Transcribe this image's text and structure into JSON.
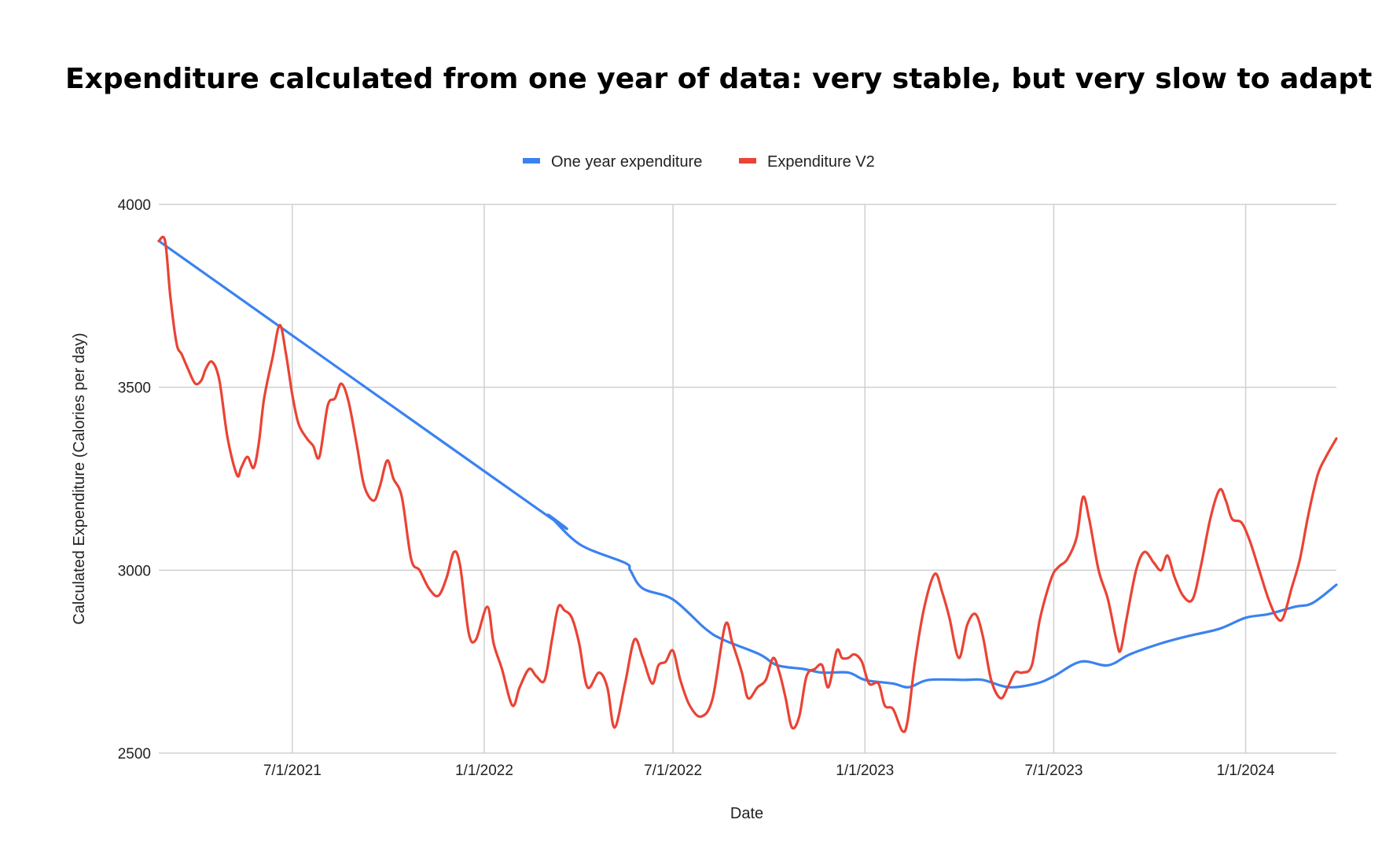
{
  "chart_data": {
    "type": "line",
    "title": "Expenditure calculated from one year of data: very stable, but very slow to adapt",
    "xlabel": "Date",
    "ylabel": "Calculated Expenditure (Calories per day)",
    "ylim": [
      2500,
      4000
    ],
    "xlim": [
      "2021-02-23",
      "2024-03-28"
    ],
    "yticks": [
      "2500",
      "3000",
      "3500",
      "4000"
    ],
    "yticks_values": [
      2500,
      3000,
      3500,
      4000
    ],
    "xticks": [
      "7/1/2021",
      "1/1/2022",
      "7/1/2022",
      "1/1/2023",
      "7/1/2023",
      "1/1/2024"
    ],
    "xticks_values": [
      "2021-07-01",
      "2022-01-01",
      "2022-07-01",
      "2023-01-01",
      "2023-07-01",
      "2024-01-01"
    ],
    "grid": true,
    "legend_position": "top",
    "series": [
      {
        "name": "One year expenditure",
        "color": "#3b82f0",
        "points": [
          [
            "2021-02-23",
            3900
          ],
          [
            "2022-02-20",
            3170
          ],
          [
            "2022-03-04",
            3150
          ],
          [
            "2022-04-03",
            3070
          ],
          [
            "2022-05-16",
            3020
          ],
          [
            "2022-05-21",
            3000
          ],
          [
            "2022-06-02",
            2950
          ],
          [
            "2022-07-01",
            2920
          ],
          [
            "2022-08-01",
            2840
          ],
          [
            "2022-08-18",
            2810
          ],
          [
            "2022-09-22",
            2770
          ],
          [
            "2022-10-09",
            2740
          ],
          [
            "2022-11-03",
            2730
          ],
          [
            "2022-11-21",
            2720
          ],
          [
            "2022-12-16",
            2720
          ],
          [
            "2023-01-01",
            2700
          ],
          [
            "2023-01-28",
            2690
          ],
          [
            "2023-02-12",
            2680
          ],
          [
            "2023-03-03",
            2700
          ],
          [
            "2023-04-07",
            2700
          ],
          [
            "2023-04-24",
            2700
          ],
          [
            "2023-05-19",
            2680
          ],
          [
            "2023-06-14",
            2690
          ],
          [
            "2023-07-01",
            2710
          ],
          [
            "2023-07-27",
            2750
          ],
          [
            "2023-08-22",
            2740
          ],
          [
            "2023-09-12",
            2770
          ],
          [
            "2023-10-12",
            2800
          ],
          [
            "2023-11-07",
            2820
          ],
          [
            "2023-12-07",
            2840
          ],
          [
            "2024-01-01",
            2870
          ],
          [
            "2024-01-23",
            2880
          ],
          [
            "2024-02-17",
            2900
          ],
          [
            "2024-03-05",
            2910
          ],
          [
            "2024-03-28",
            2960
          ]
        ]
      },
      {
        "name": "Expenditure V2",
        "color": "#ea4335",
        "points": [
          [
            "2021-02-23",
            3900
          ],
          [
            "2021-03-01",
            3900
          ],
          [
            "2021-03-06",
            3750
          ],
          [
            "2021-03-12",
            3620
          ],
          [
            "2021-03-17",
            3590
          ],
          [
            "2021-03-23",
            3550
          ],
          [
            "2021-03-30",
            3510
          ],
          [
            "2021-04-05",
            3520
          ],
          [
            "2021-04-09",
            3550
          ],
          [
            "2021-04-15",
            3570
          ],
          [
            "2021-04-22",
            3520
          ],
          [
            "2021-04-30",
            3360
          ],
          [
            "2021-05-09",
            3260
          ],
          [
            "2021-05-13",
            3280
          ],
          [
            "2021-05-19",
            3310
          ],
          [
            "2021-05-25",
            3280
          ],
          [
            "2021-05-30",
            3350
          ],
          [
            "2021-06-04",
            3470
          ],
          [
            "2021-06-12",
            3580
          ],
          [
            "2021-06-19",
            3670
          ],
          [
            "2021-06-25",
            3590
          ],
          [
            "2021-07-01",
            3480
          ],
          [
            "2021-07-07",
            3400
          ],
          [
            "2021-07-15",
            3360
          ],
          [
            "2021-07-21",
            3340
          ],
          [
            "2021-07-27",
            3310
          ],
          [
            "2021-08-04",
            3450
          ],
          [
            "2021-08-11",
            3470
          ],
          [
            "2021-08-17",
            3510
          ],
          [
            "2021-08-24",
            3460
          ],
          [
            "2021-09-01",
            3340
          ],
          [
            "2021-09-08",
            3230
          ],
          [
            "2021-09-17",
            3190
          ],
          [
            "2021-09-23",
            3230
          ],
          [
            "2021-09-30",
            3300
          ],
          [
            "2021-10-06",
            3250
          ],
          [
            "2021-10-14",
            3200
          ],
          [
            "2021-10-23",
            3030
          ],
          [
            "2021-10-31",
            3000
          ],
          [
            "2021-11-09",
            2950
          ],
          [
            "2021-11-18",
            2930
          ],
          [
            "2021-11-26",
            2980
          ],
          [
            "2021-12-03",
            3050
          ],
          [
            "2021-12-09",
            3010
          ],
          [
            "2021-12-17",
            2830
          ],
          [
            "2021-12-24",
            2810
          ],
          [
            "2022-01-04",
            2900
          ],
          [
            "2022-01-10",
            2800
          ],
          [
            "2022-01-18",
            2730
          ],
          [
            "2022-01-28",
            2630
          ],
          [
            "2022-02-04",
            2680
          ],
          [
            "2022-02-13",
            2730
          ],
          [
            "2022-02-20",
            2710
          ],
          [
            "2022-02-28",
            2700
          ],
          [
            "2022-03-07",
            2810
          ],
          [
            "2022-03-13",
            2900
          ],
          [
            "2022-03-19",
            2890
          ],
          [
            "2022-03-26",
            2870
          ],
          [
            "2022-04-02",
            2800
          ],
          [
            "2022-04-10",
            2680
          ],
          [
            "2022-04-21",
            2720
          ],
          [
            "2022-04-29",
            2680
          ],
          [
            "2022-05-06",
            2570
          ],
          [
            "2022-05-16",
            2690
          ],
          [
            "2022-05-25",
            2810
          ],
          [
            "2022-06-02",
            2760
          ],
          [
            "2022-06-11",
            2690
          ],
          [
            "2022-06-17",
            2740
          ],
          [
            "2022-06-24",
            2750
          ],
          [
            "2022-07-01",
            2780
          ],
          [
            "2022-07-08",
            2700
          ],
          [
            "2022-07-17",
            2630
          ],
          [
            "2022-07-28",
            2600
          ],
          [
            "2022-08-08",
            2650
          ],
          [
            "2022-08-20",
            2850
          ],
          [
            "2022-08-27",
            2800
          ],
          [
            "2022-09-05",
            2720
          ],
          [
            "2022-09-11",
            2650
          ],
          [
            "2022-09-20",
            2680
          ],
          [
            "2022-09-28",
            2700
          ],
          [
            "2022-10-05",
            2760
          ],
          [
            "2022-10-11",
            2720
          ],
          [
            "2022-10-17",
            2650
          ],
          [
            "2022-10-23",
            2570
          ],
          [
            "2022-10-30",
            2600
          ],
          [
            "2022-11-06",
            2710
          ],
          [
            "2022-11-14",
            2730
          ],
          [
            "2022-11-21",
            2740
          ],
          [
            "2022-11-27",
            2680
          ],
          [
            "2022-12-05",
            2780
          ],
          [
            "2022-12-10",
            2760
          ],
          [
            "2022-12-16",
            2760
          ],
          [
            "2022-12-22",
            2770
          ],
          [
            "2022-12-29",
            2750
          ],
          [
            "2023-01-05",
            2690
          ],
          [
            "2023-01-14",
            2690
          ],
          [
            "2023-01-20",
            2630
          ],
          [
            "2023-01-28",
            2620
          ],
          [
            "2023-02-06",
            2560
          ],
          [
            "2023-02-11",
            2590
          ],
          [
            "2023-02-18",
            2750
          ],
          [
            "2023-02-27",
            2900
          ],
          [
            "2023-03-09",
            2990
          ],
          [
            "2023-03-16",
            2940
          ],
          [
            "2023-03-23",
            2870
          ],
          [
            "2023-04-01",
            2760
          ],
          [
            "2023-04-09",
            2850
          ],
          [
            "2023-04-17",
            2880
          ],
          [
            "2023-04-24",
            2820
          ],
          [
            "2023-05-02",
            2700
          ],
          [
            "2023-05-11",
            2650
          ],
          [
            "2023-05-18",
            2680
          ],
          [
            "2023-05-25",
            2720
          ],
          [
            "2023-06-01",
            2720
          ],
          [
            "2023-06-10",
            2740
          ],
          [
            "2023-06-18",
            2870
          ],
          [
            "2023-06-29",
            2980
          ],
          [
            "2023-07-06",
            3010
          ],
          [
            "2023-07-14",
            3030
          ],
          [
            "2023-07-23",
            3090
          ],
          [
            "2023-07-29",
            3200
          ],
          [
            "2023-08-04",
            3140
          ],
          [
            "2023-08-13",
            3000
          ],
          [
            "2023-08-22",
            2920
          ],
          [
            "2023-08-30",
            2810
          ],
          [
            "2023-09-03",
            2780
          ],
          [
            "2023-09-09",
            2870
          ],
          [
            "2023-09-18",
            3000
          ],
          [
            "2023-09-26",
            3050
          ],
          [
            "2023-10-05",
            3020
          ],
          [
            "2023-10-12",
            3000
          ],
          [
            "2023-10-18",
            3040
          ],
          [
            "2023-10-25",
            2980
          ],
          [
            "2023-11-02",
            2930
          ],
          [
            "2023-11-11",
            2920
          ],
          [
            "2023-11-19",
            3010
          ],
          [
            "2023-11-28",
            3140
          ],
          [
            "2023-12-07",
            3220
          ],
          [
            "2023-12-13",
            3190
          ],
          [
            "2023-12-19",
            3140
          ],
          [
            "2023-12-28",
            3130
          ],
          [
            "2024-01-05",
            3080
          ],
          [
            "2024-01-14",
            3000
          ],
          [
            "2024-01-23",
            2920
          ],
          [
            "2024-01-31",
            2870
          ],
          [
            "2024-02-06",
            2870
          ],
          [
            "2024-02-14",
            2950
          ],
          [
            "2024-02-22",
            3030
          ],
          [
            "2024-03-01",
            3150
          ],
          [
            "2024-03-10",
            3260
          ],
          [
            "2024-03-18",
            3310
          ],
          [
            "2024-03-28",
            3360
          ]
        ]
      }
    ]
  }
}
